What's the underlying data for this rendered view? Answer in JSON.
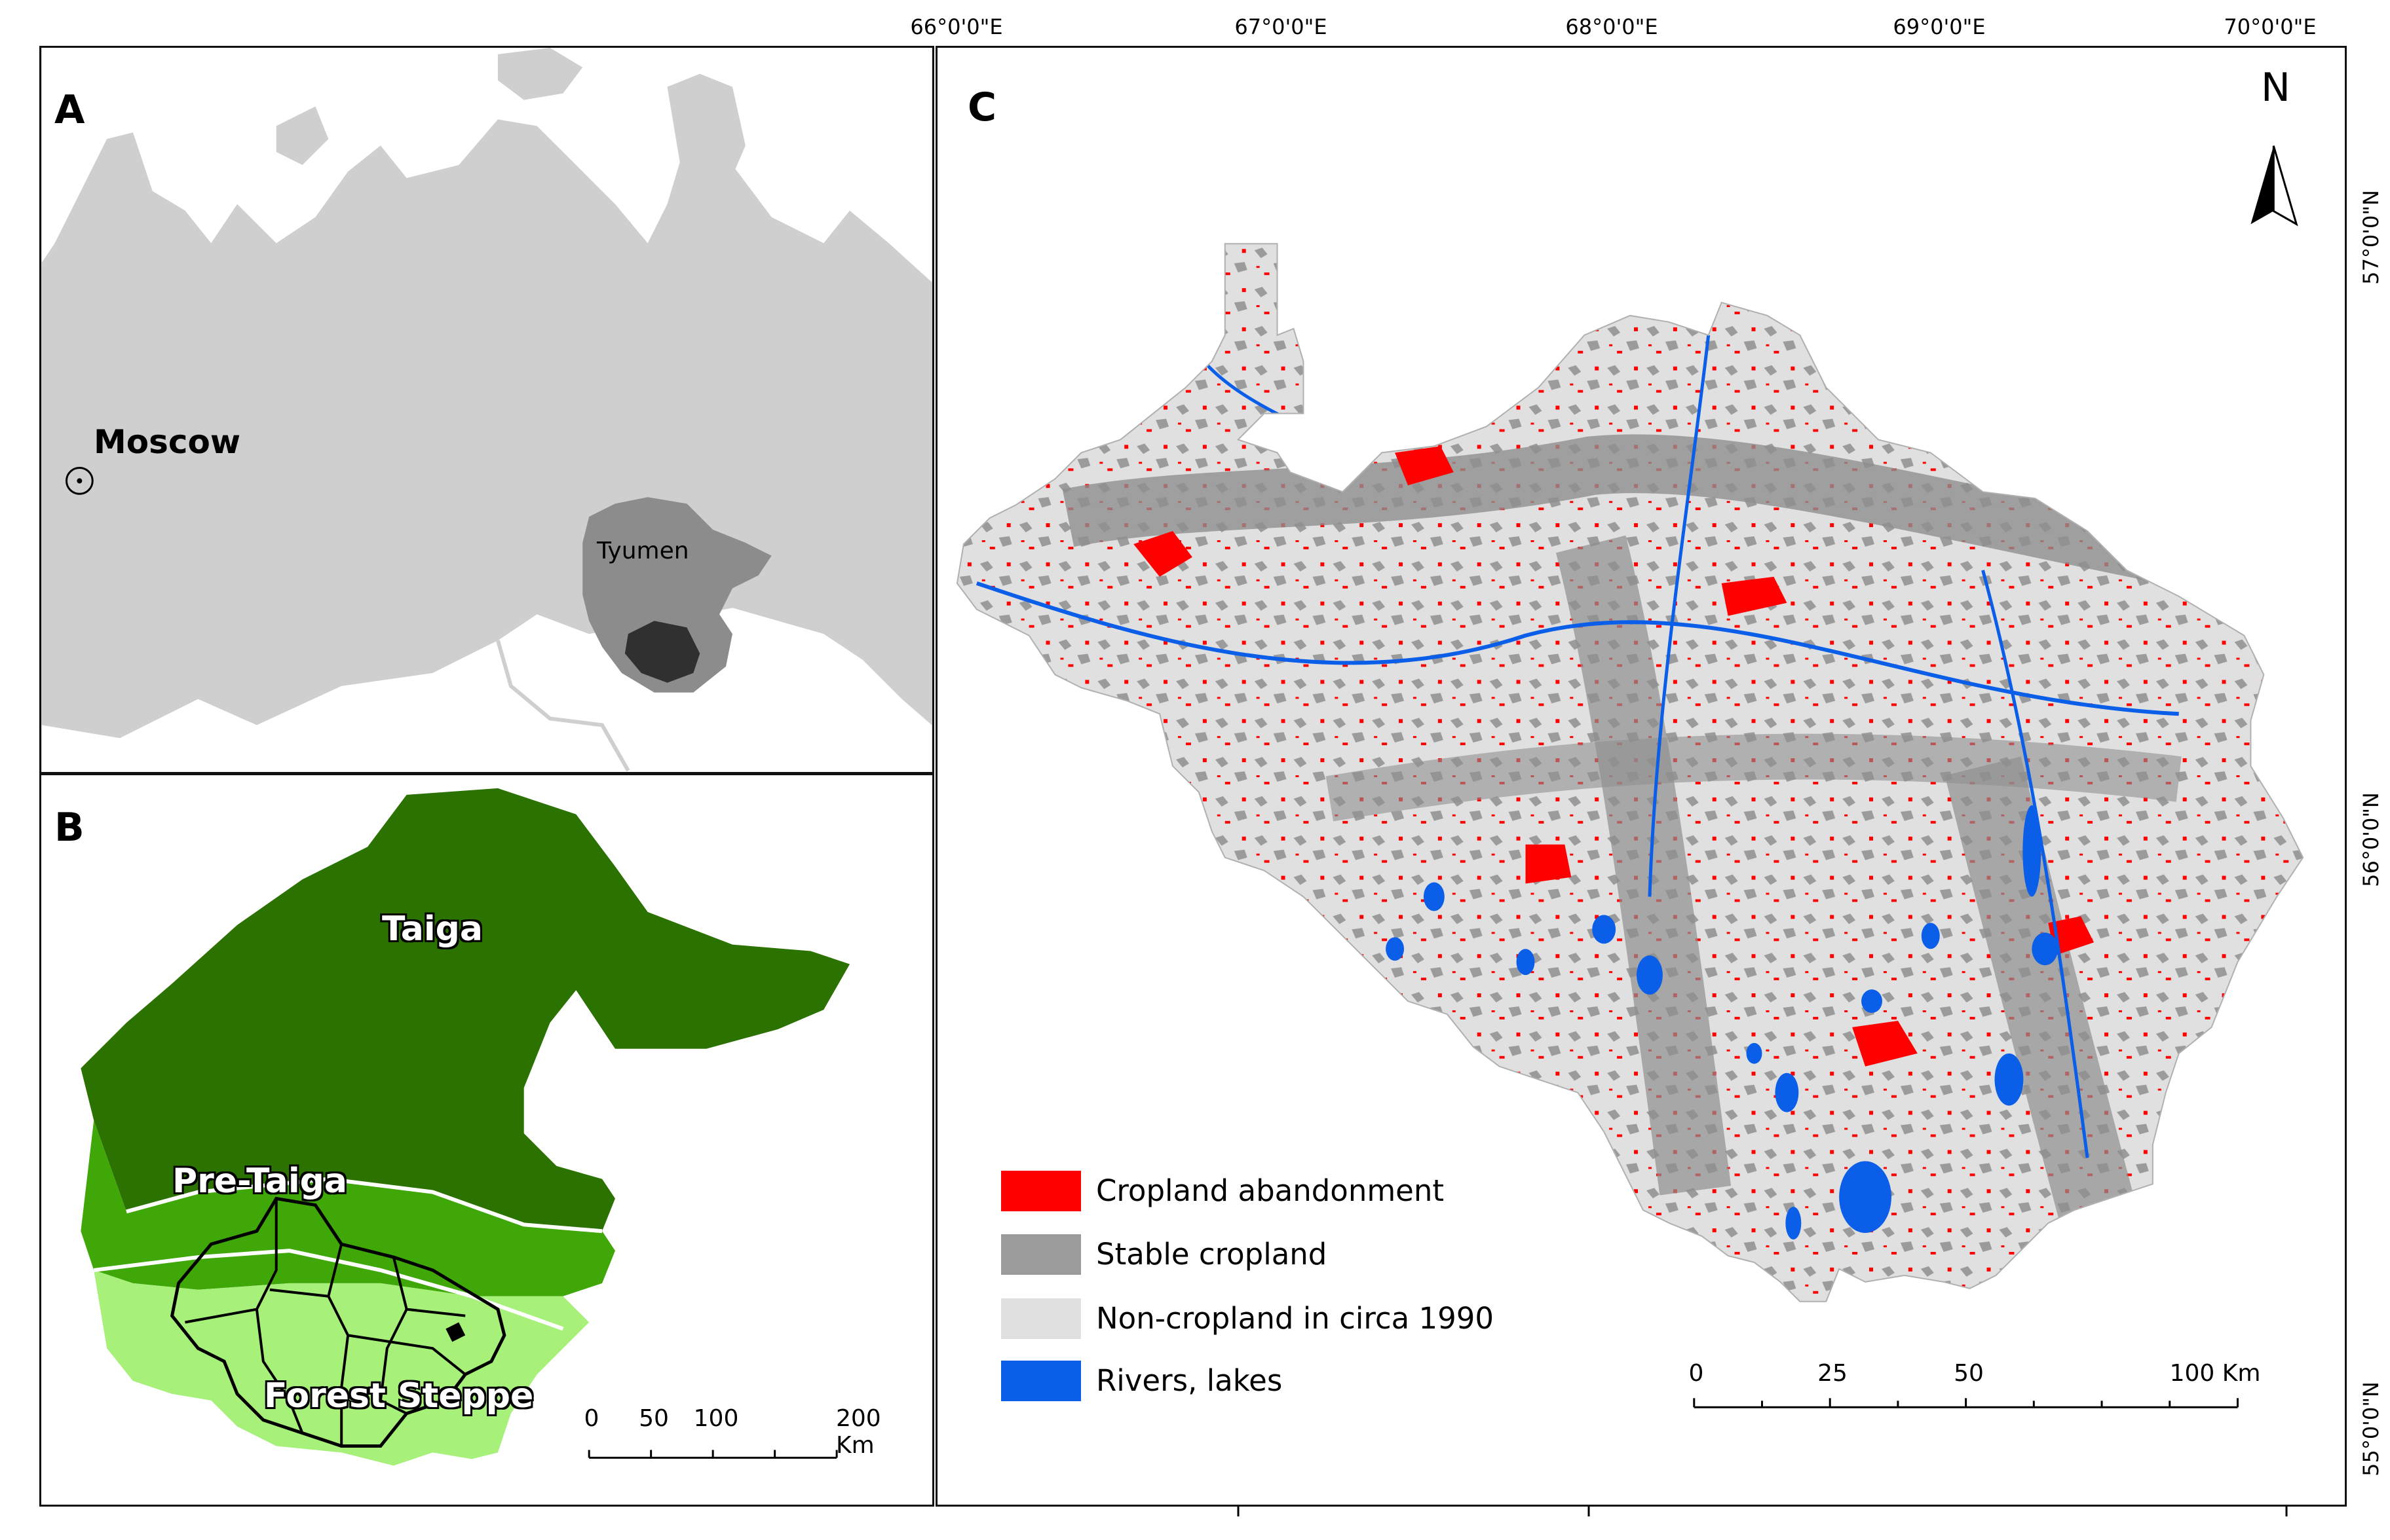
{
  "panel_a": {
    "letter": "A",
    "city_label": "Moscow",
    "region_label": "Tyumen"
  },
  "panel_b": {
    "letter": "B",
    "zones": [
      {
        "name": "Taiga",
        "color": "#2b7200"
      },
      {
        "name": "Pre-Taiga",
        "color": "#3fa808"
      },
      {
        "name": "Forest Steppe",
        "color": "#a7f07a"
      }
    ],
    "scale_labels": [
      "0",
      "50",
      "100",
      "200 Km"
    ]
  },
  "panel_c": {
    "letter": "C",
    "north_label": "N",
    "longitude_ticks": [
      "66°0'0\"E",
      "67°0'0\"E",
      "68°0'0\"E",
      "69°0'0\"E",
      "70°0'0\"E"
    ],
    "latitude_ticks": [
      "57°0'0\"N",
      "56°0'0\"N",
      "55°0'0\"N"
    ],
    "legend": [
      {
        "label": "Cropland abandonment",
        "color": "#ff0000"
      },
      {
        "label": "Stable cropland",
        "color": "#9b9b9b"
      },
      {
        "label": "Non-cropland in circa 1990",
        "color": "#e0e0e0"
      },
      {
        "label": "Rivers, lakes",
        "color": "#0a5ee8"
      }
    ],
    "scale_labels": [
      "0",
      "25",
      "50",
      "100 Km"
    ]
  }
}
